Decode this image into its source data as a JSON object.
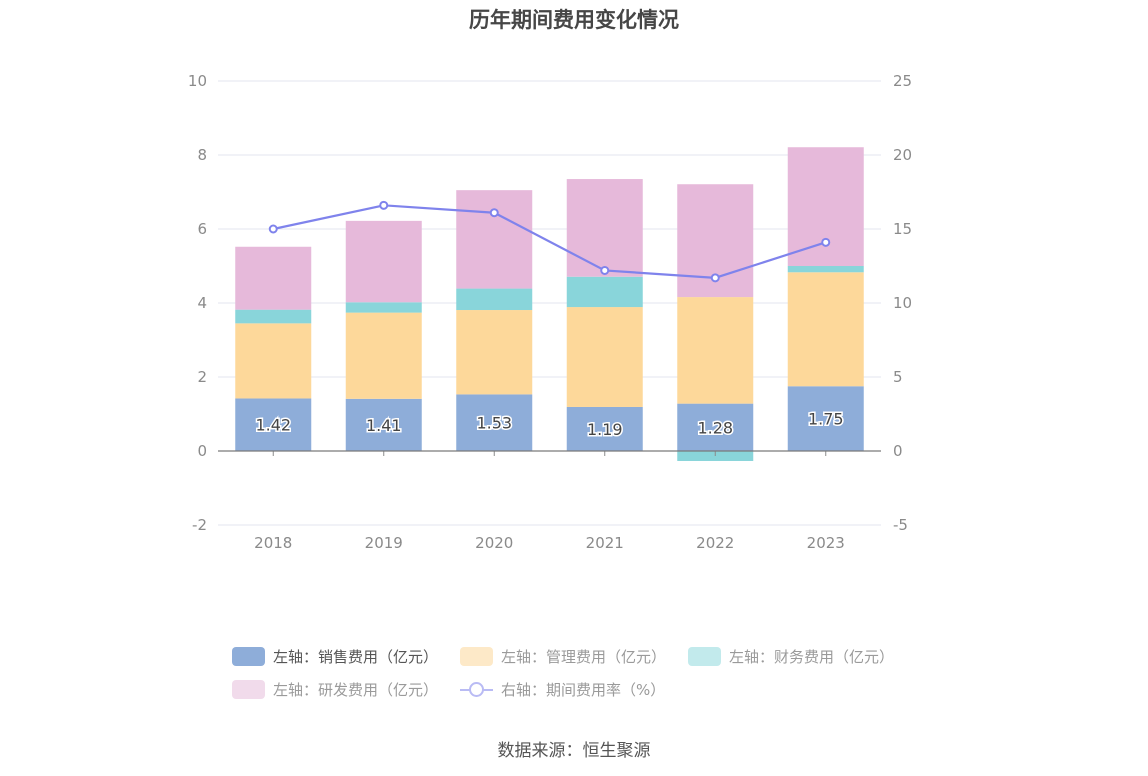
{
  "title": "历年期间费用变化情况",
  "source": "数据来源：恒生聚源",
  "chart_data": {
    "type": "bar",
    "stacked": true,
    "categories": [
      "2018",
      "2019",
      "2020",
      "2021",
      "2022",
      "2023"
    ],
    "left_axis": {
      "ylim": [
        -2,
        10
      ],
      "ticks": [
        "-2",
        "0",
        "2",
        "4",
        "6",
        "8",
        "10"
      ]
    },
    "right_axis": {
      "ylim": [
        -5,
        25
      ],
      "ticks": [
        "-5",
        "0",
        "5",
        "10",
        "15",
        "20",
        "25"
      ]
    },
    "grid": true,
    "legend_position": "bottom",
    "series": [
      {
        "name": "左轴：销售费用（亿元）",
        "axis": "left",
        "kind": "bar",
        "color": "#8eadd9",
        "values": [
          1.42,
          1.41,
          1.53,
          1.19,
          1.28,
          1.75
        ],
        "labels": [
          "1.42",
          "1.41",
          "1.53",
          "1.19",
          "1.28",
          "1.75"
        ]
      },
      {
        "name": "左轴：管理费用（亿元）",
        "axis": "left",
        "kind": "bar",
        "color": "#fdd89a",
        "values": [
          2.03,
          2.33,
          2.28,
          2.7,
          2.88,
          3.08
        ]
      },
      {
        "name": "左轴：财务费用（亿元）",
        "axis": "left",
        "kind": "bar",
        "color": "#89d5da",
        "values": [
          0.37,
          0.28,
          0.58,
          0.82,
          -0.27,
          0.17
        ]
      },
      {
        "name": "左轴：研发费用（亿元）",
        "axis": "left",
        "kind": "bar",
        "color": "#e6b9da",
        "values": [
          1.7,
          2.2,
          2.66,
          2.64,
          3.05,
          3.21
        ]
      },
      {
        "name": "右轴：期间费用率（%）",
        "axis": "right",
        "kind": "line",
        "color": "#7f83ec",
        "values": [
          15.0,
          16.6,
          16.1,
          12.2,
          11.7,
          14.1
        ]
      }
    ]
  }
}
